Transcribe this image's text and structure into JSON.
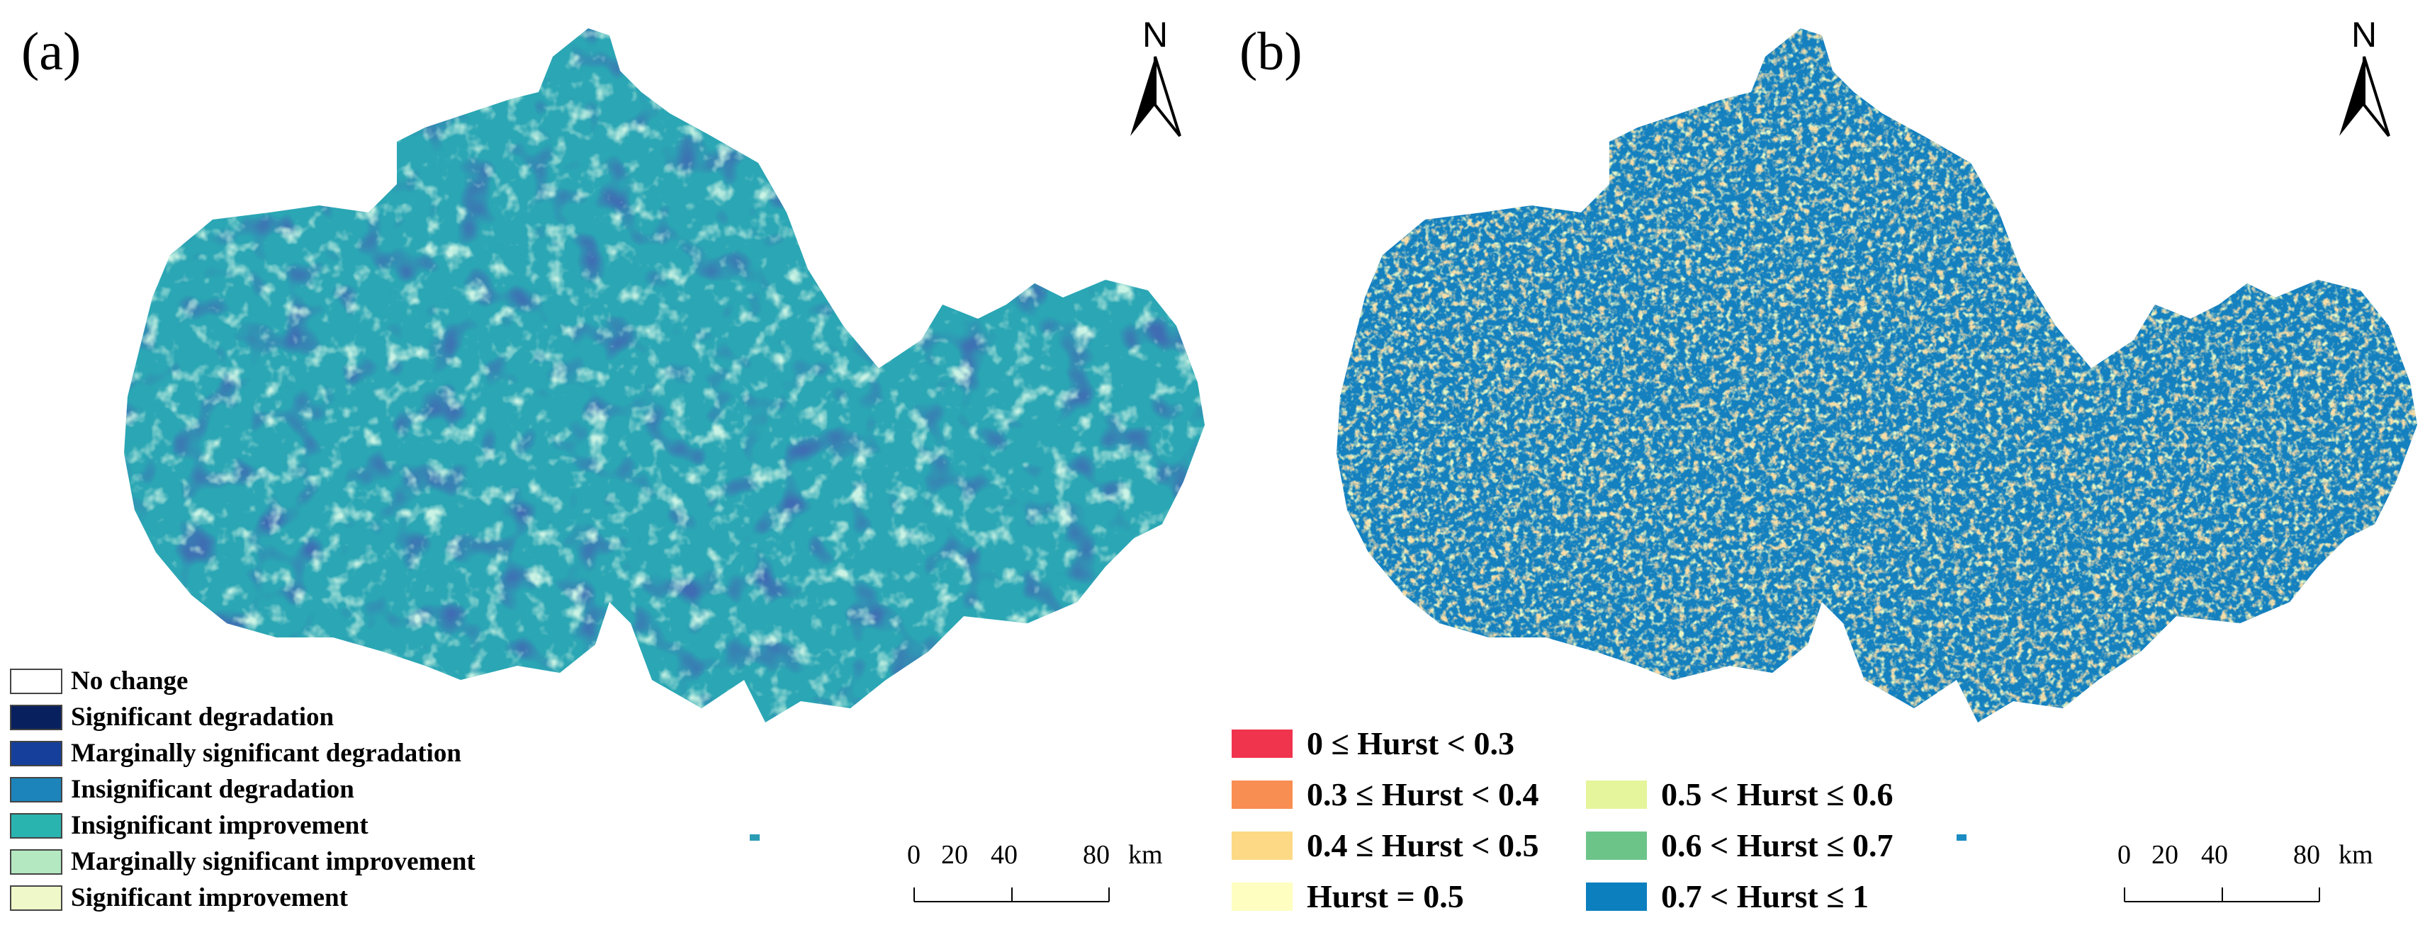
{
  "panel_a": {
    "label": "(a)",
    "north": "N",
    "legend": [
      {
        "label": "No change",
        "color": "#ffffff"
      },
      {
        "label": "Significant degradation",
        "color": "#08205e"
      },
      {
        "label": "Marginally significant degradation",
        "color": "#153f9a"
      },
      {
        "label": "Insignificant degradation",
        "color": "#1d84bb"
      },
      {
        "label": "Insignificant improvement",
        "color": "#2ab4b0"
      },
      {
        "label": "Marginally significant improvement",
        "color": "#b4e8c1"
      },
      {
        "label": "Significant improvement",
        "color": "#eff8c8"
      }
    ],
    "scale": {
      "ticks": [
        "0",
        "20",
        "40",
        "80"
      ],
      "unit": "km"
    }
  },
  "panel_b": {
    "label": "(b)",
    "north": "N",
    "legend_left": [
      {
        "label": "0 ≤ Hurst < 0.3",
        "color": "#f0344d"
      },
      {
        "label": "0.3 ≤ Hurst < 0.4",
        "color": "#f98e52"
      },
      {
        "label": "0.4 ≤ Hurst < 0.5",
        "color": "#fdd985"
      },
      {
        "label": "Hurst = 0.5",
        "color": "#fefec1"
      }
    ],
    "legend_right": [
      {
        "label": "0.5 < Hurst ≤ 0.6",
        "color": "#e4f59b"
      },
      {
        "label": "0.6 < Hurst ≤ 0.7",
        "color": "#6dc489"
      },
      {
        "label": "0.7 < Hurst ≤ 1",
        "color": "#0c7fbf"
      }
    ],
    "scale": {
      "ticks": [
        "0",
        "20",
        "40",
        "80"
      ],
      "unit": "km"
    }
  }
}
